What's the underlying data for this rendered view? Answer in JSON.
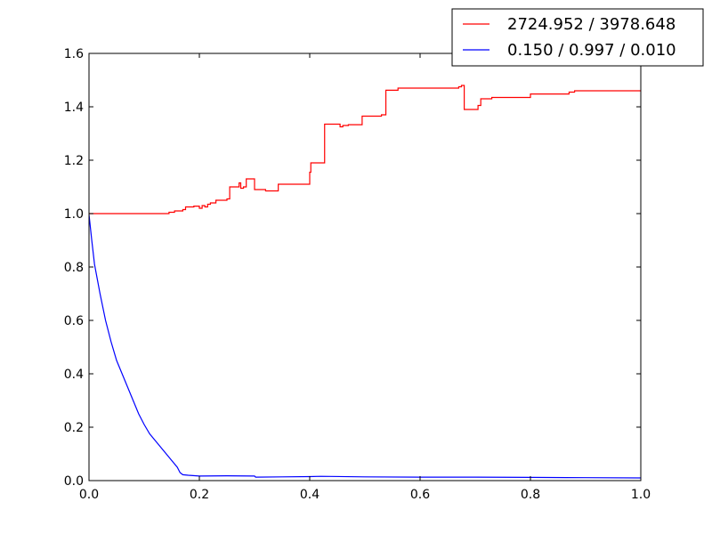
{
  "chart_data": {
    "type": "line",
    "title": "",
    "xlabel": "",
    "ylabel": "",
    "xlim": [
      0.0,
      1.0
    ],
    "ylim": [
      0.0,
      1.6
    ],
    "x_ticks": [
      0.0,
      0.2,
      0.4,
      0.6,
      0.8,
      1.0
    ],
    "x_tick_labels": [
      "0.0",
      "0.2",
      "0.4",
      "0.6",
      "0.8",
      "1.0"
    ],
    "y_ticks": [
      0.0,
      0.2,
      0.4,
      0.6,
      0.8,
      1.0,
      1.2,
      1.4,
      1.6
    ],
    "y_tick_labels": [
      "0.0",
      "0.2",
      "0.4",
      "0.6",
      "0.8",
      "1.0",
      "1.2",
      "1.4",
      "1.6"
    ],
    "grid": false,
    "legend_position": "top-right",
    "series": [
      {
        "name": "2724.952 / 3978.648",
        "color": "#ff0000",
        "step": true,
        "points": [
          [
            0.0,
            1.0
          ],
          [
            0.135,
            1.0
          ],
          [
            0.145,
            1.005
          ],
          [
            0.155,
            1.01
          ],
          [
            0.17,
            1.015
          ],
          [
            0.175,
            1.025
          ],
          [
            0.19,
            1.028
          ],
          [
            0.2,
            1.02
          ],
          [
            0.205,
            1.03
          ],
          [
            0.21,
            1.025
          ],
          [
            0.215,
            1.035
          ],
          [
            0.22,
            1.04
          ],
          [
            0.23,
            1.05
          ],
          [
            0.25,
            1.055
          ],
          [
            0.255,
            1.1
          ],
          [
            0.27,
            1.1
          ],
          [
            0.272,
            1.115
          ],
          [
            0.275,
            1.095
          ],
          [
            0.28,
            1.1
          ],
          [
            0.285,
            1.13
          ],
          [
            0.3,
            1.09
          ],
          [
            0.32,
            1.085
          ],
          [
            0.34,
            1.085
          ],
          [
            0.343,
            1.11
          ],
          [
            0.35,
            1.11
          ],
          [
            0.39,
            1.11
          ],
          [
            0.4,
            1.155
          ],
          [
            0.402,
            1.19
          ],
          [
            0.425,
            1.19
          ],
          [
            0.427,
            1.335
          ],
          [
            0.45,
            1.335
          ],
          [
            0.455,
            1.325
          ],
          [
            0.46,
            1.33
          ],
          [
            0.47,
            1.333
          ],
          [
            0.49,
            1.333
          ],
          [
            0.495,
            1.365
          ],
          [
            0.53,
            1.37
          ],
          [
            0.538,
            1.462
          ],
          [
            0.555,
            1.462
          ],
          [
            0.56,
            1.47
          ],
          [
            0.59,
            1.47
          ],
          [
            0.65,
            1.47
          ],
          [
            0.67,
            1.475
          ],
          [
            0.675,
            1.48
          ],
          [
            0.68,
            1.39
          ],
          [
            0.7,
            1.39
          ],
          [
            0.705,
            1.405
          ],
          [
            0.71,
            1.43
          ],
          [
            0.73,
            1.435
          ],
          [
            0.8,
            1.44
          ],
          [
            0.8,
            1.448
          ],
          [
            0.87,
            1.455
          ],
          [
            0.88,
            1.46
          ],
          [
            1.0,
            1.46
          ]
        ]
      },
      {
        "name": "0.150 / 0.997 / 0.010",
        "color": "#0000ff",
        "step": false,
        "points": [
          [
            0.0,
            0.997
          ],
          [
            0.005,
            0.9
          ],
          [
            0.01,
            0.81
          ],
          [
            0.02,
            0.7
          ],
          [
            0.03,
            0.6
          ],
          [
            0.04,
            0.52
          ],
          [
            0.05,
            0.45
          ],
          [
            0.06,
            0.4
          ],
          [
            0.07,
            0.35
          ],
          [
            0.08,
            0.3
          ],
          [
            0.09,
            0.25
          ],
          [
            0.1,
            0.21
          ],
          [
            0.11,
            0.175
          ],
          [
            0.12,
            0.15
          ],
          [
            0.13,
            0.125
          ],
          [
            0.14,
            0.1
          ],
          [
            0.15,
            0.075
          ],
          [
            0.16,
            0.05
          ],
          [
            0.165,
            0.03
          ],
          [
            0.17,
            0.022
          ],
          [
            0.18,
            0.02
          ],
          [
            0.2,
            0.017
          ],
          [
            0.25,
            0.018
          ],
          [
            0.3,
            0.017
          ],
          [
            0.302,
            0.013
          ],
          [
            0.35,
            0.014
          ],
          [
            0.4,
            0.015
          ],
          [
            0.42,
            0.016
          ],
          [
            0.5,
            0.014
          ],
          [
            0.6,
            0.013
          ],
          [
            0.7,
            0.013
          ],
          [
            0.8,
            0.012
          ],
          [
            0.9,
            0.011
          ],
          [
            1.0,
            0.01
          ]
        ]
      }
    ]
  }
}
